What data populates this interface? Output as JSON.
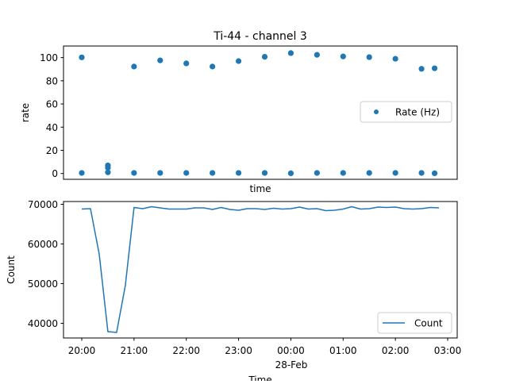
{
  "chart_data": [
    {
      "type": "scatter",
      "title": "Ti-44 - channel 3",
      "xlabel": "time",
      "ylabel": "rate",
      "ylim": [
        -5,
        110
      ],
      "yticks": [
        0,
        20,
        40,
        60,
        80,
        100
      ],
      "xticks_visible": false,
      "grid": false,
      "legend": {
        "position": "center-right",
        "entries": [
          "Rate (Hz)"
        ]
      },
      "series": [
        {
          "name": "Rate (Hz)",
          "color": "#1f77b4",
          "points": [
            [
              "20:00",
              100.2
            ],
            [
              "20:00",
              0.5
            ],
            [
              "20:30",
              7.0
            ],
            [
              "20:30",
              5.0
            ],
            [
              "20:30",
              1.0
            ],
            [
              "21:00",
              92.3
            ],
            [
              "21:00",
              0.5
            ],
            [
              "21:30",
              97.6
            ],
            [
              "21:30",
              0.5
            ],
            [
              "22:00",
              95.0
            ],
            [
              "22:00",
              0.5
            ],
            [
              "22:30",
              92.3
            ],
            [
              "22:30",
              0.5
            ],
            [
              "23:00",
              97.0
            ],
            [
              "23:00",
              0.5
            ],
            [
              "23:30",
              100.7
            ],
            [
              "23:30",
              0.5
            ],
            [
              "00:00",
              103.9
            ],
            [
              "00:00",
              0.2
            ],
            [
              "00:30",
              102.4
            ],
            [
              "00:30",
              0.5
            ],
            [
              "01:00",
              101.0
            ],
            [
              "01:00",
              0.5
            ],
            [
              "01:30",
              100.4
            ],
            [
              "01:30",
              0.5
            ],
            [
              "02:00",
              99.0
            ],
            [
              "02:00",
              0.5
            ],
            [
              "02:30",
              90.3
            ],
            [
              "02:30",
              0.5
            ],
            [
              "02:45",
              90.8
            ],
            [
              "02:45",
              0.2
            ]
          ]
        }
      ]
    },
    {
      "type": "line",
      "title": "",
      "xlabel": "Time",
      "ylabel": "Count",
      "ylim": [
        36300,
        70700
      ],
      "yticks": [
        40000,
        50000,
        60000,
        70000
      ],
      "xticks": [
        "20:00",
        "21:00",
        "22:00",
        "23:00",
        "00:00",
        "01:00",
        "02:00",
        "03:00"
      ],
      "xtick_sublabel": {
        "under": "00:00",
        "text": "28-Feb"
      },
      "grid": false,
      "legend": {
        "position": "lower-right",
        "entries": [
          "Count"
        ]
      },
      "series": [
        {
          "name": "Count",
          "color": "#1f77b4",
          "x": [
            "20:00",
            "20:10",
            "20:20",
            "20:30",
            "20:40",
            "20:50",
            "21:00",
            "21:10",
            "21:20",
            "21:30",
            "21:40",
            "21:50",
            "22:00",
            "22:10",
            "22:20",
            "22:30",
            "22:40",
            "22:50",
            "23:00",
            "23:10",
            "23:20",
            "23:30",
            "23:40",
            "23:50",
            "00:00",
            "00:10",
            "00:20",
            "00:30",
            "00:40",
            "00:50",
            "01:00",
            "01:10",
            "01:20",
            "01:30",
            "01:40",
            "01:50",
            "02:00",
            "02:10",
            "02:20",
            "02:30",
            "02:40",
            "02:50"
          ],
          "values": [
            68800,
            68900,
            57500,
            37900,
            37700,
            49500,
            69200,
            68900,
            69400,
            69100,
            68800,
            68800,
            68800,
            69100,
            69100,
            68700,
            69200,
            68700,
            68500,
            68900,
            68900,
            68700,
            69000,
            68800,
            68900,
            69300,
            68800,
            68900,
            68400,
            68500,
            68800,
            69400,
            68800,
            68900,
            69300,
            69200,
            69300,
            68900,
            68800,
            68900,
            69200,
            69100
          ]
        }
      ]
    }
  ]
}
